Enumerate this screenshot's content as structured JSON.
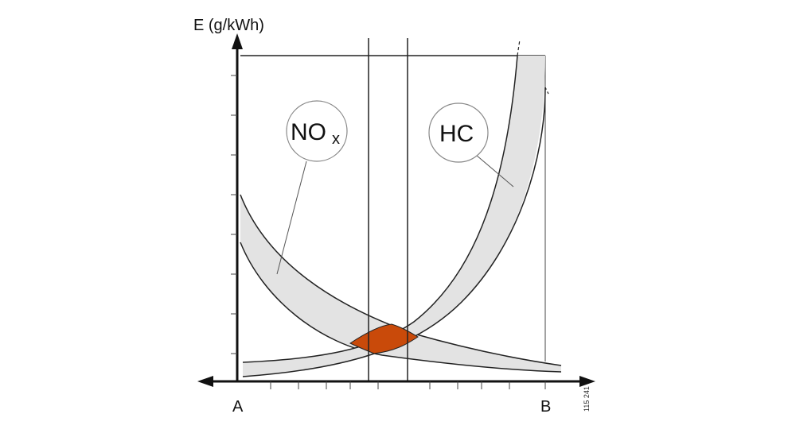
{
  "chart_data": {
    "type": "area",
    "ylabel": "E (g/kWh)",
    "x_labels": {
      "start": "A",
      "end": "B"
    },
    "bands": [
      {
        "name": "NO",
        "sub": "x",
        "kind": "decreasing"
      },
      {
        "name": "HC",
        "kind": "increasing"
      }
    ],
    "overlap_region": {
      "description_color": "#cc4a0a"
    },
    "vertical_markers": 2,
    "grid": false,
    "reference_code": "115 241"
  },
  "colors": {
    "band_fill": "#e3e3e3",
    "overlap_fill": "#c94a0a",
    "line": "#222222"
  }
}
